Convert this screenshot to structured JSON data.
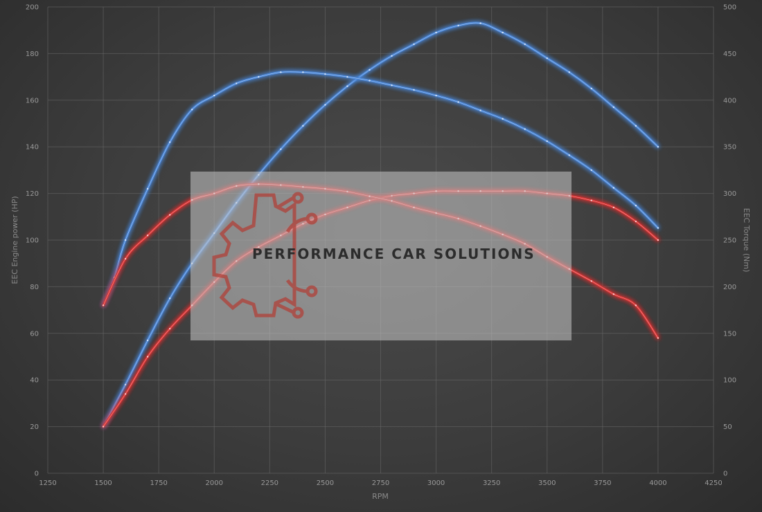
{
  "chart_data": {
    "type": "line",
    "xlabel": "RPM",
    "ylabel_left": "EEC Engine power (HP)",
    "ylabel_right": "EEC Torque (Nm)",
    "xlim": [
      1250,
      4250
    ],
    "ylim_left": [
      0,
      200
    ],
    "ylim_right": [
      0,
      500
    ],
    "x_ticks": [
      "1250",
      "1500",
      "1750",
      "2000",
      "2250",
      "2500",
      "2750",
      "3000",
      "3250",
      "3500",
      "3750",
      "4000",
      "4250"
    ],
    "y_ticks_left": [
      "0",
      "20",
      "40",
      "60",
      "80",
      "100",
      "120",
      "140",
      "160",
      "180",
      "200"
    ],
    "y_ticks_right": [
      "0",
      "50",
      "100",
      "150",
      "200",
      "250",
      "300",
      "350",
      "400",
      "450",
      "500"
    ],
    "grid": true,
    "series": [
      {
        "axis": "left",
        "color": "#4a86d8",
        "x": [
          1500,
          1600,
          1700,
          1800,
          1900,
          2000,
          2100,
          2200,
          2300,
          2400,
          2500,
          2600,
          2700,
          2800,
          2900,
          3000,
          3100,
          3200,
          3300,
          3400,
          3500,
          3600,
          3700,
          3800,
          3900,
          4000
        ],
        "y": [
          20,
          38,
          57,
          75,
          90,
          103,
          116,
          128,
          139,
          149,
          158,
          166,
          173,
          179,
          184,
          189,
          192,
          193,
          189,
          184,
          178,
          172,
          165,
          157,
          149,
          140
        ]
      },
      {
        "axis": "left",
        "color": "#d83030",
        "x": [
          1500,
          1600,
          1700,
          1800,
          1900,
          2000,
          2100,
          2200,
          2300,
          2400,
          2500,
          2600,
          2700,
          2800,
          2900,
          3000,
          3100,
          3200,
          3300,
          3400,
          3500,
          3600,
          3700,
          3800,
          3900,
          4000
        ],
        "y": [
          20,
          34,
          50,
          62,
          72,
          82,
          91,
          97,
          102,
          107,
          111,
          114,
          117,
          119,
          120,
          121,
          121,
          121,
          121,
          121,
          120,
          119,
          117,
          114,
          108,
          100
        ]
      },
      {
        "axis": "right",
        "color": "#4a86d8",
        "x": [
          1500,
          1550,
          1600,
          1700,
          1800,
          1900,
          2000,
          2100,
          2200,
          2300,
          2400,
          2500,
          2600,
          2700,
          2800,
          2900,
          3000,
          3100,
          3200,
          3300,
          3400,
          3500,
          3600,
          3700,
          3800,
          3900,
          4000
        ],
        "y": [
          180,
          210,
          250,
          305,
          355,
          390,
          405,
          418,
          425,
          430,
          430,
          428,
          425,
          421,
          416,
          411,
          405,
          398,
          389,
          380,
          369,
          356,
          341,
          325,
          306,
          287,
          263
        ]
      },
      {
        "axis": "right",
        "color": "#d83030",
        "x": [
          1500,
          1600,
          1700,
          1800,
          1900,
          2000,
          2100,
          2200,
          2300,
          2400,
          2500,
          2600,
          2700,
          2800,
          2900,
          3000,
          3100,
          3200,
          3300,
          3400,
          3500,
          3600,
          3700,
          3800,
          3900,
          4000
        ],
        "y": [
          180,
          230,
          255,
          277,
          293,
          300,
          308,
          310,
          309,
          307,
          305,
          302,
          297,
          292,
          285,
          279,
          273,
          265,
          256,
          246,
          232,
          219,
          206,
          192,
          180,
          145
        ]
      }
    ]
  },
  "watermark": {
    "text": "PERFORMANCE CAR SOLUTIONS",
    "logo_icon": "gear-circuit-icon",
    "accent": "#b04038",
    "panel_color": "#c8c8c8"
  }
}
